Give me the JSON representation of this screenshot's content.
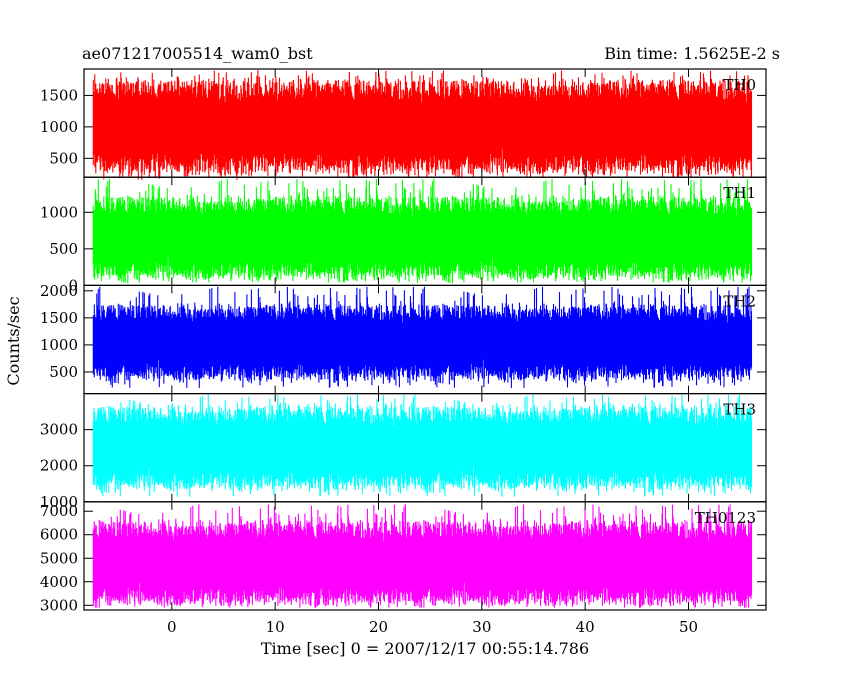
{
  "chart_data": {
    "type": "line",
    "title": "ae071217005514_wam0_bst",
    "bin_label": "Bin time: 1.5625E-2 s",
    "xlabel": "Time [sec] 0 = 2007/12/17 00:55:14.786",
    "ylabel": "Counts/sec",
    "xlim": [
      -8.5,
      57.5
    ],
    "data_xrange": [
      -7.6,
      56.1
    ],
    "bin_time": 0.015625,
    "x_ticks": [
      0,
      10,
      20,
      30,
      40,
      50
    ],
    "x_tick_labels": [
      "0",
      "10",
      "20",
      "30",
      "40",
      "50"
    ],
    "grid": false,
    "panels": [
      {
        "name": "TH0",
        "color": "#ff0000",
        "ylim": [
          200,
          1920
        ],
        "y_ticks": [
          500,
          1000,
          1500
        ],
        "y_tick_labels": [
          "500",
          "1000",
          "1500"
        ],
        "mean": 1000,
        "typical_range": [
          250,
          1750
        ],
        "extreme_range": [
          160,
          1900
        ]
      },
      {
        "name": "TH1",
        "color": "#00ff00",
        "ylim": [
          0,
          1480
        ],
        "y_ticks": [
          0,
          500,
          1000
        ],
        "y_tick_labels": [
          "0",
          "500",
          "1000"
        ],
        "mean": 650,
        "typical_range": [
          120,
          1260
        ],
        "extreme_range": [
          20,
          1460
        ]
      },
      {
        "name": "TH2",
        "color": "#0000ff",
        "ylim": [
          100,
          2100
        ],
        "y_ticks": [
          500,
          1000,
          1500,
          2000
        ],
        "y_tick_labels": [
          "500",
          "1000",
          "1500",
          "2000"
        ],
        "mean": 1050,
        "typical_range": [
          380,
          1780
        ],
        "extreme_range": [
          180,
          2080
        ]
      },
      {
        "name": "TH3",
        "color": "#00ffff",
        "ylim": [
          1000,
          4000
        ],
        "y_ticks": [
          1000,
          2000,
          3000
        ],
        "y_tick_labels": [
          "1000",
          "2000",
          "3000"
        ],
        "mean": 2500,
        "typical_range": [
          1350,
          3650
        ],
        "extreme_range": [
          1100,
          3980
        ]
      },
      {
        "name": "TH0123",
        "color": "#ff00ff",
        "ylim": [
          2800,
          7400
        ],
        "y_ticks": [
          3000,
          4000,
          5000,
          6000,
          7000
        ],
        "y_tick_labels": [
          "3000",
          "4000",
          "5000",
          "6000",
          "7000"
        ],
        "mean": 4800,
        "typical_range": [
          3200,
          6800
        ],
        "extreme_range": [
          2900,
          7300
        ]
      }
    ]
  }
}
